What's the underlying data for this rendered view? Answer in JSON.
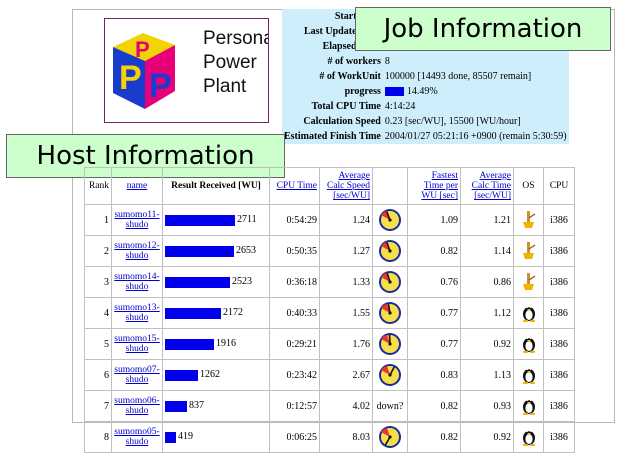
{
  "logo": {
    "lines": [
      "Personal",
      "Power",
      "Plant"
    ],
    "color_p": "#e8007a",
    "color_blue": "#1a3ccc",
    "color_yellow": "#f2d400"
  },
  "callouts": {
    "job": "Job Information",
    "host": "Host Information"
  },
  "job_info": [
    {
      "key": "Start Time",
      "value": ""
    },
    {
      "key": "Last Update Time",
      "value": ""
    },
    {
      "key": "Elapsed Time",
      "value": ""
    },
    {
      "key": "# of workers",
      "value": "8"
    },
    {
      "key": "# of WorkUnit",
      "value": "100000 [14493 done, 85507 remain]"
    },
    {
      "key": "progress",
      "value": "14.49%",
      "fraction": 0.1449
    },
    {
      "key": "Total CPU Time",
      "value": "4:14:24"
    },
    {
      "key": "Calculation Speed",
      "value": "0.23 [sec/WU], 15500 [WU/hour]"
    },
    {
      "key": "Estimated Finish Time",
      "value": "2004/01/27 05:21:16 +0900 (remain 5:30:59)"
    }
  ],
  "host_headers": {
    "rank": "Rank",
    "name": "name",
    "result": "Result Received [WU]",
    "cpu_time": "CPU Time",
    "avg_speed": "Average Calc Speed [sec/WU]",
    "fastest": "Fastest Time per WU [sec]",
    "avg_time": "Average Calc Time [sec/WU]",
    "os": "OS",
    "cpu": "CPU"
  },
  "hosts": [
    {
      "rank": "1",
      "name1": "sumomo11",
      "name2": "shudo",
      "result": "2711",
      "cpu_time": "0:54:29",
      "avg_speed": "1.24",
      "status": "",
      "fastest": "1.09",
      "avg_time": "1.21",
      "os": "windows-icon",
      "cpu": "i386"
    },
    {
      "rank": "2",
      "name1": "sumomo12",
      "name2": "shudo",
      "result": "2653",
      "cpu_time": "0:50:35",
      "avg_speed": "1.27",
      "status": "",
      "fastest": "0.82",
      "avg_time": "1.14",
      "os": "windows-icon",
      "cpu": "i386"
    },
    {
      "rank": "3",
      "name1": "sumomo14",
      "name2": "shudo",
      "result": "2523",
      "cpu_time": "0:36:18",
      "avg_speed": "1.33",
      "status": "",
      "fastest": "0.76",
      "avg_time": "0.86",
      "os": "windows-icon",
      "cpu": "i386"
    },
    {
      "rank": "4",
      "name1": "sumomo13",
      "name2": "shudo",
      "result": "2172",
      "cpu_time": "0:40:33",
      "avg_speed": "1.55",
      "status": "",
      "fastest": "0.77",
      "avg_time": "1.12",
      "os": "linux-icon",
      "cpu": "i386"
    },
    {
      "rank": "5",
      "name1": "sumomo15",
      "name2": "shudo",
      "result": "1916",
      "cpu_time": "0:29:21",
      "avg_speed": "1.76",
      "status": "",
      "fastest": "0.77",
      "avg_time": "0.92",
      "os": "linux-icon",
      "cpu": "i386"
    },
    {
      "rank": "6",
      "name1": "sumomo07",
      "name2": "shudo",
      "result": "1262",
      "cpu_time": "0:23:42",
      "avg_speed": "2.67",
      "status": "",
      "fastest": "0.83",
      "avg_time": "1.13",
      "os": "linux-icon",
      "cpu": "i386"
    },
    {
      "rank": "7",
      "name1": "sumomo06",
      "name2": "shudo",
      "result": "837",
      "cpu_time": "0:12:57",
      "avg_speed": "4.02",
      "status": "down?",
      "fastest": "0.82",
      "avg_time": "0.93",
      "os": "linux-icon",
      "cpu": "i386"
    },
    {
      "rank": "8",
      "name1": "sumomo05",
      "name2": "shudo",
      "result": "419",
      "cpu_time": "0:06:25",
      "avg_speed": "8.03",
      "status": "",
      "fastest": "0.82",
      "avg_time": "0.92",
      "os": "linux-icon",
      "cpu": "i386"
    }
  ]
}
